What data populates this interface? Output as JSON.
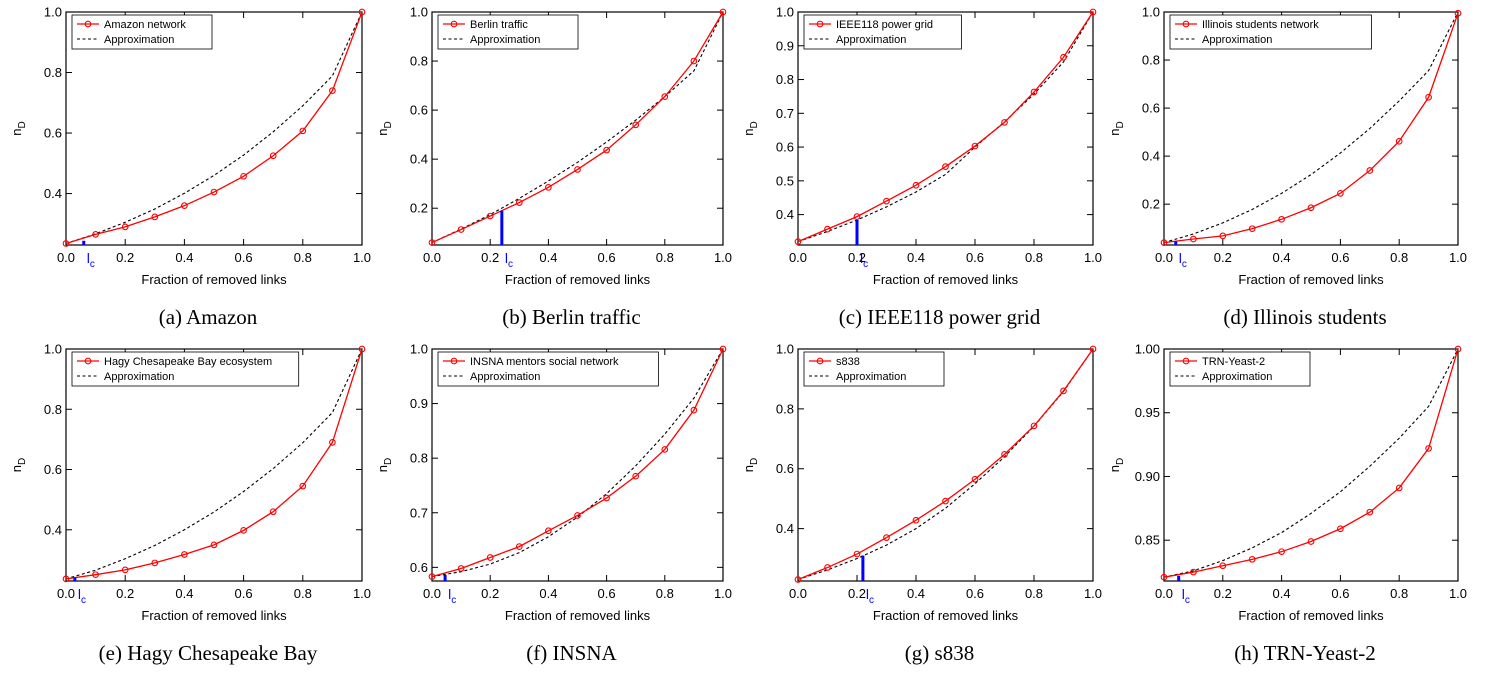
{
  "figure": {
    "axis_text": {
      "x_label": "Fraction of removed links",
      "y_label_base": "n",
      "y_label_sub": "D",
      "lc_base": "l",
      "lc_sub": "c"
    },
    "legend_approx": "Approximation",
    "colors": {
      "data_series": "#ff0000",
      "approximation": "#000000",
      "lc_marker": "#0000ff",
      "frame": "#000000"
    }
  },
  "chart_data": [
    {
      "type": "line",
      "caption": "(a) Amazon",
      "xlim": [
        0,
        1
      ],
      "ylim": [
        0.23,
        1.0
      ],
      "xticks": [
        "0.0",
        "0.2",
        "0.4",
        "0.6",
        "0.8",
        "1.0"
      ],
      "yticks": [
        {
          "v": 0.4,
          "t": "0.4"
        },
        {
          "v": 0.6,
          "t": "0.6"
        },
        {
          "v": 0.8,
          "t": "0.8"
        },
        {
          "v": 1.0,
          "t": "1.0"
        }
      ],
      "series": [
        {
          "name": "Amazon network",
          "x": [
            0,
            0.1,
            0.2,
            0.3,
            0.4,
            0.5,
            0.6,
            0.7,
            0.8,
            0.9,
            1.0
          ],
          "y": [
            0.235,
            0.265,
            0.29,
            0.323,
            0.36,
            0.405,
            0.457,
            0.525,
            0.607,
            0.74,
            1.0
          ]
        },
        {
          "name": "Approximation",
          "x": [
            0,
            0.1,
            0.2,
            0.3,
            0.4,
            0.5,
            0.6,
            0.7,
            0.8,
            0.9,
            1.0
          ],
          "y": [
            0.235,
            0.267,
            0.305,
            0.349,
            0.401,
            0.46,
            0.527,
            0.604,
            0.69,
            0.789,
            1.0
          ]
        }
      ],
      "lc": 0.06,
      "lc_y": 0.244
    },
    {
      "type": "line",
      "caption": "(b) Berlin traffic",
      "xlim": [
        0,
        1
      ],
      "ylim": [
        0.05,
        1.0
      ],
      "xticks": [
        "0.0",
        "0.2",
        "0.4",
        "0.6",
        "0.8",
        "1.0"
      ],
      "yticks": [
        {
          "v": 0.2,
          "t": "0.2"
        },
        {
          "v": 0.4,
          "t": "0.4"
        },
        {
          "v": 0.6,
          "t": "0.6"
        },
        {
          "v": 0.8,
          "t": "0.8"
        },
        {
          "v": 1.0,
          "t": "1.0"
        }
      ],
      "series": [
        {
          "name": "Berlin traffic",
          "x": [
            0,
            0.1,
            0.2,
            0.3,
            0.4,
            0.5,
            0.6,
            0.7,
            0.8,
            0.9,
            1.0
          ],
          "y": [
            0.06,
            0.113,
            0.168,
            0.223,
            0.285,
            0.358,
            0.437,
            0.54,
            0.655,
            0.8,
            1.0
          ]
        },
        {
          "name": "Approximation",
          "x": [
            0,
            0.1,
            0.2,
            0.3,
            0.4,
            0.5,
            0.6,
            0.7,
            0.8,
            0.9,
            1.0
          ],
          "y": [
            0.06,
            0.115,
            0.174,
            0.24,
            0.311,
            0.387,
            0.47,
            0.559,
            0.655,
            0.76,
            1.0
          ]
        }
      ],
      "lc": 0.24,
      "lc_y": 0.19
    },
    {
      "type": "line",
      "caption": "(c) IEEE118 power grid",
      "xlim": [
        0,
        1
      ],
      "ylim": [
        0.31,
        1.0
      ],
      "xticks": [
        "0.0",
        "0.2",
        "0.4",
        "0.6",
        "0.8",
        "1.0"
      ],
      "yticks": [
        {
          "v": 0.4,
          "t": "0.4"
        },
        {
          "v": 0.5,
          "t": "0.5"
        },
        {
          "v": 0.6,
          "t": "0.6"
        },
        {
          "v": 0.7,
          "t": "0.7"
        },
        {
          "v": 0.8,
          "t": "0.8"
        },
        {
          "v": 0.9,
          "t": "0.9"
        },
        {
          "v": 1.0,
          "t": "1.0"
        }
      ],
      "series": [
        {
          "name": "IEEE118 power grid",
          "x": [
            0,
            0.1,
            0.2,
            0.3,
            0.4,
            0.5,
            0.6,
            0.7,
            0.8,
            0.9,
            1.0
          ],
          "y": [
            0.32,
            0.357,
            0.394,
            0.44,
            0.487,
            0.542,
            0.603,
            0.673,
            0.763,
            0.866,
            1.0
          ]
        },
        {
          "name": "Approximation",
          "x": [
            0,
            0.1,
            0.2,
            0.3,
            0.4,
            0.5,
            0.6,
            0.7,
            0.8,
            0.9,
            1.0
          ],
          "y": [
            0.32,
            0.35,
            0.384,
            0.423,
            0.467,
            0.519,
            0.6,
            0.675,
            0.757,
            0.852,
            1.0
          ]
        }
      ],
      "lc": 0.2,
      "lc_y": 0.384
    },
    {
      "type": "line",
      "caption": "(d) Illinois students",
      "xlim": [
        0,
        1
      ],
      "ylim": [
        0.03,
        1.0
      ],
      "xticks": [
        "0.0",
        "0.2",
        "0.4",
        "0.6",
        "0.8",
        "1.0"
      ],
      "yticks": [
        {
          "v": 0.2,
          "t": "0.2"
        },
        {
          "v": 0.4,
          "t": "0.4"
        },
        {
          "v": 0.6,
          "t": "0.6"
        },
        {
          "v": 0.8,
          "t": "0.8"
        },
        {
          "v": 1.0,
          "t": "1.0"
        }
      ],
      "series": [
        {
          "name": "Illinois students network",
          "x": [
            0,
            0.1,
            0.2,
            0.3,
            0.4,
            0.5,
            0.6,
            0.7,
            0.8,
            0.9,
            1.0
          ],
          "y": [
            0.04,
            0.055,
            0.068,
            0.098,
            0.137,
            0.185,
            0.245,
            0.34,
            0.462,
            0.645,
            0.995
          ]
        },
        {
          "name": "Approximation",
          "x": [
            0,
            0.1,
            0.2,
            0.3,
            0.4,
            0.5,
            0.6,
            0.7,
            0.8,
            0.9,
            1.0
          ],
          "y": [
            0.04,
            0.076,
            0.122,
            0.178,
            0.245,
            0.323,
            0.413,
            0.515,
            0.63,
            0.756,
            1.0
          ]
        }
      ],
      "lc": 0.04,
      "lc_y": 0.045
    },
    {
      "type": "line",
      "caption": "(e) Hagy Chesapeake Bay",
      "xlim": [
        0,
        1
      ],
      "ylim": [
        0.23,
        1.0
      ],
      "xticks": [
        "0.0",
        "0.2",
        "0.4",
        "0.6",
        "0.8",
        "1.0"
      ],
      "yticks": [
        {
          "v": 0.4,
          "t": "0.4"
        },
        {
          "v": 0.6,
          "t": "0.6"
        },
        {
          "v": 0.8,
          "t": "0.8"
        },
        {
          "v": 1.0,
          "t": "1.0"
        }
      ],
      "series": [
        {
          "name": "Hagy Chesapeake Bay ecosystem",
          "x": [
            0,
            0.1,
            0.2,
            0.3,
            0.4,
            0.5,
            0.6,
            0.7,
            0.8,
            0.9,
            1.0
          ],
          "y": [
            0.237,
            0.251,
            0.267,
            0.29,
            0.318,
            0.35,
            0.398,
            0.46,
            0.545,
            0.69,
            1.0
          ]
        },
        {
          "name": "Approximation",
          "x": [
            0,
            0.1,
            0.2,
            0.3,
            0.4,
            0.5,
            0.6,
            0.7,
            0.8,
            0.9,
            1.0
          ],
          "y": [
            0.237,
            0.266,
            0.304,
            0.348,
            0.4,
            0.459,
            0.527,
            0.603,
            0.689,
            0.789,
            1.0
          ]
        }
      ],
      "lc": 0.03,
      "lc_y": 0.242
    },
    {
      "type": "line",
      "caption": "(f) INSNA",
      "xlim": [
        0,
        1
      ],
      "ylim": [
        0.575,
        1.0
      ],
      "xticks": [
        "0.0",
        "0.2",
        "0.4",
        "0.6",
        "0.8",
        "1.0"
      ],
      "yticks": [
        {
          "v": 0.6,
          "t": "0.6"
        },
        {
          "v": 0.7,
          "t": "0.7"
        },
        {
          "v": 0.8,
          "t": "0.8"
        },
        {
          "v": 0.9,
          "t": "0.9"
        },
        {
          "v": 1.0,
          "t": "1.0"
        }
      ],
      "series": [
        {
          "name": "INSNA mentors social network",
          "x": [
            0,
            0.1,
            0.2,
            0.3,
            0.4,
            0.5,
            0.6,
            0.7,
            0.8,
            0.9,
            1.0
          ],
          "y": [
            0.583,
            0.598,
            0.618,
            0.638,
            0.667,
            0.695,
            0.727,
            0.767,
            0.816,
            0.888,
            1.0
          ]
        },
        {
          "name": "Approximation",
          "x": [
            0,
            0.1,
            0.2,
            0.3,
            0.4,
            0.5,
            0.6,
            0.7,
            0.8,
            0.9,
            1.0
          ],
          "y": [
            0.583,
            0.592,
            0.606,
            0.627,
            0.656,
            0.692,
            0.735,
            0.786,
            0.844,
            0.91,
            1.0
          ]
        }
      ],
      "lc": 0.045,
      "lc_y": 0.586
    },
    {
      "type": "line",
      "caption": "(g) s838",
      "xlim": [
        0,
        1
      ],
      "ylim": [
        0.225,
        1.0
      ],
      "xticks": [
        "0.0",
        "0.2",
        "0.4",
        "0.6",
        "0.8",
        "1.0"
      ],
      "yticks": [
        {
          "v": 0.4,
          "t": "0.4"
        },
        {
          "v": 0.6,
          "t": "0.6"
        },
        {
          "v": 0.8,
          "t": "0.8"
        },
        {
          "v": 1.0,
          "t": "1.0"
        }
      ],
      "series": [
        {
          "name": "s838",
          "x": [
            0,
            0.1,
            0.2,
            0.3,
            0.4,
            0.5,
            0.6,
            0.7,
            0.8,
            0.9,
            1.0
          ],
          "y": [
            0.23,
            0.27,
            0.315,
            0.37,
            0.428,
            0.492,
            0.565,
            0.648,
            0.743,
            0.86,
            1.0
          ]
        },
        {
          "name": "Approximation",
          "x": [
            0,
            0.1,
            0.2,
            0.3,
            0.4,
            0.5,
            0.6,
            0.7,
            0.8,
            0.9,
            1.0
          ],
          "y": [
            0.23,
            0.262,
            0.3,
            0.345,
            0.4,
            0.468,
            0.55,
            0.64,
            0.742,
            0.858,
            1.0
          ]
        }
      ],
      "lc": 0.22,
      "lc_y": 0.31
    },
    {
      "type": "line",
      "caption": "(h) TRN-Yeast-2",
      "xlim": [
        0,
        1
      ],
      "ylim": [
        0.818,
        1.0
      ],
      "xticks": [
        "0.0",
        "0.2",
        "0.4",
        "0.6",
        "0.8",
        "1.0"
      ],
      "yticks": [
        {
          "v": 0.85,
          "t": "0.85"
        },
        {
          "v": 0.9,
          "t": "0.90"
        },
        {
          "v": 0.95,
          "t": "0.95"
        },
        {
          "v": 1.0,
          "t": "1.00"
        }
      ],
      "series": [
        {
          "name": "TRN-Yeast-2",
          "x": [
            0,
            0.1,
            0.2,
            0.3,
            0.4,
            0.5,
            0.6,
            0.7,
            0.8,
            0.9,
            1.0
          ],
          "y": [
            0.821,
            0.825,
            0.83,
            0.835,
            0.841,
            0.849,
            0.859,
            0.872,
            0.891,
            0.922,
            1.0
          ]
        },
        {
          "name": "Approximation",
          "x": [
            0,
            0.1,
            0.2,
            0.3,
            0.4,
            0.5,
            0.6,
            0.7,
            0.8,
            0.9,
            1.0
          ],
          "y": [
            0.821,
            0.826,
            0.834,
            0.844,
            0.856,
            0.871,
            0.888,
            0.908,
            0.93,
            0.955,
            1.0
          ]
        }
      ],
      "lc": 0.05,
      "lc_y": 0.822
    }
  ]
}
